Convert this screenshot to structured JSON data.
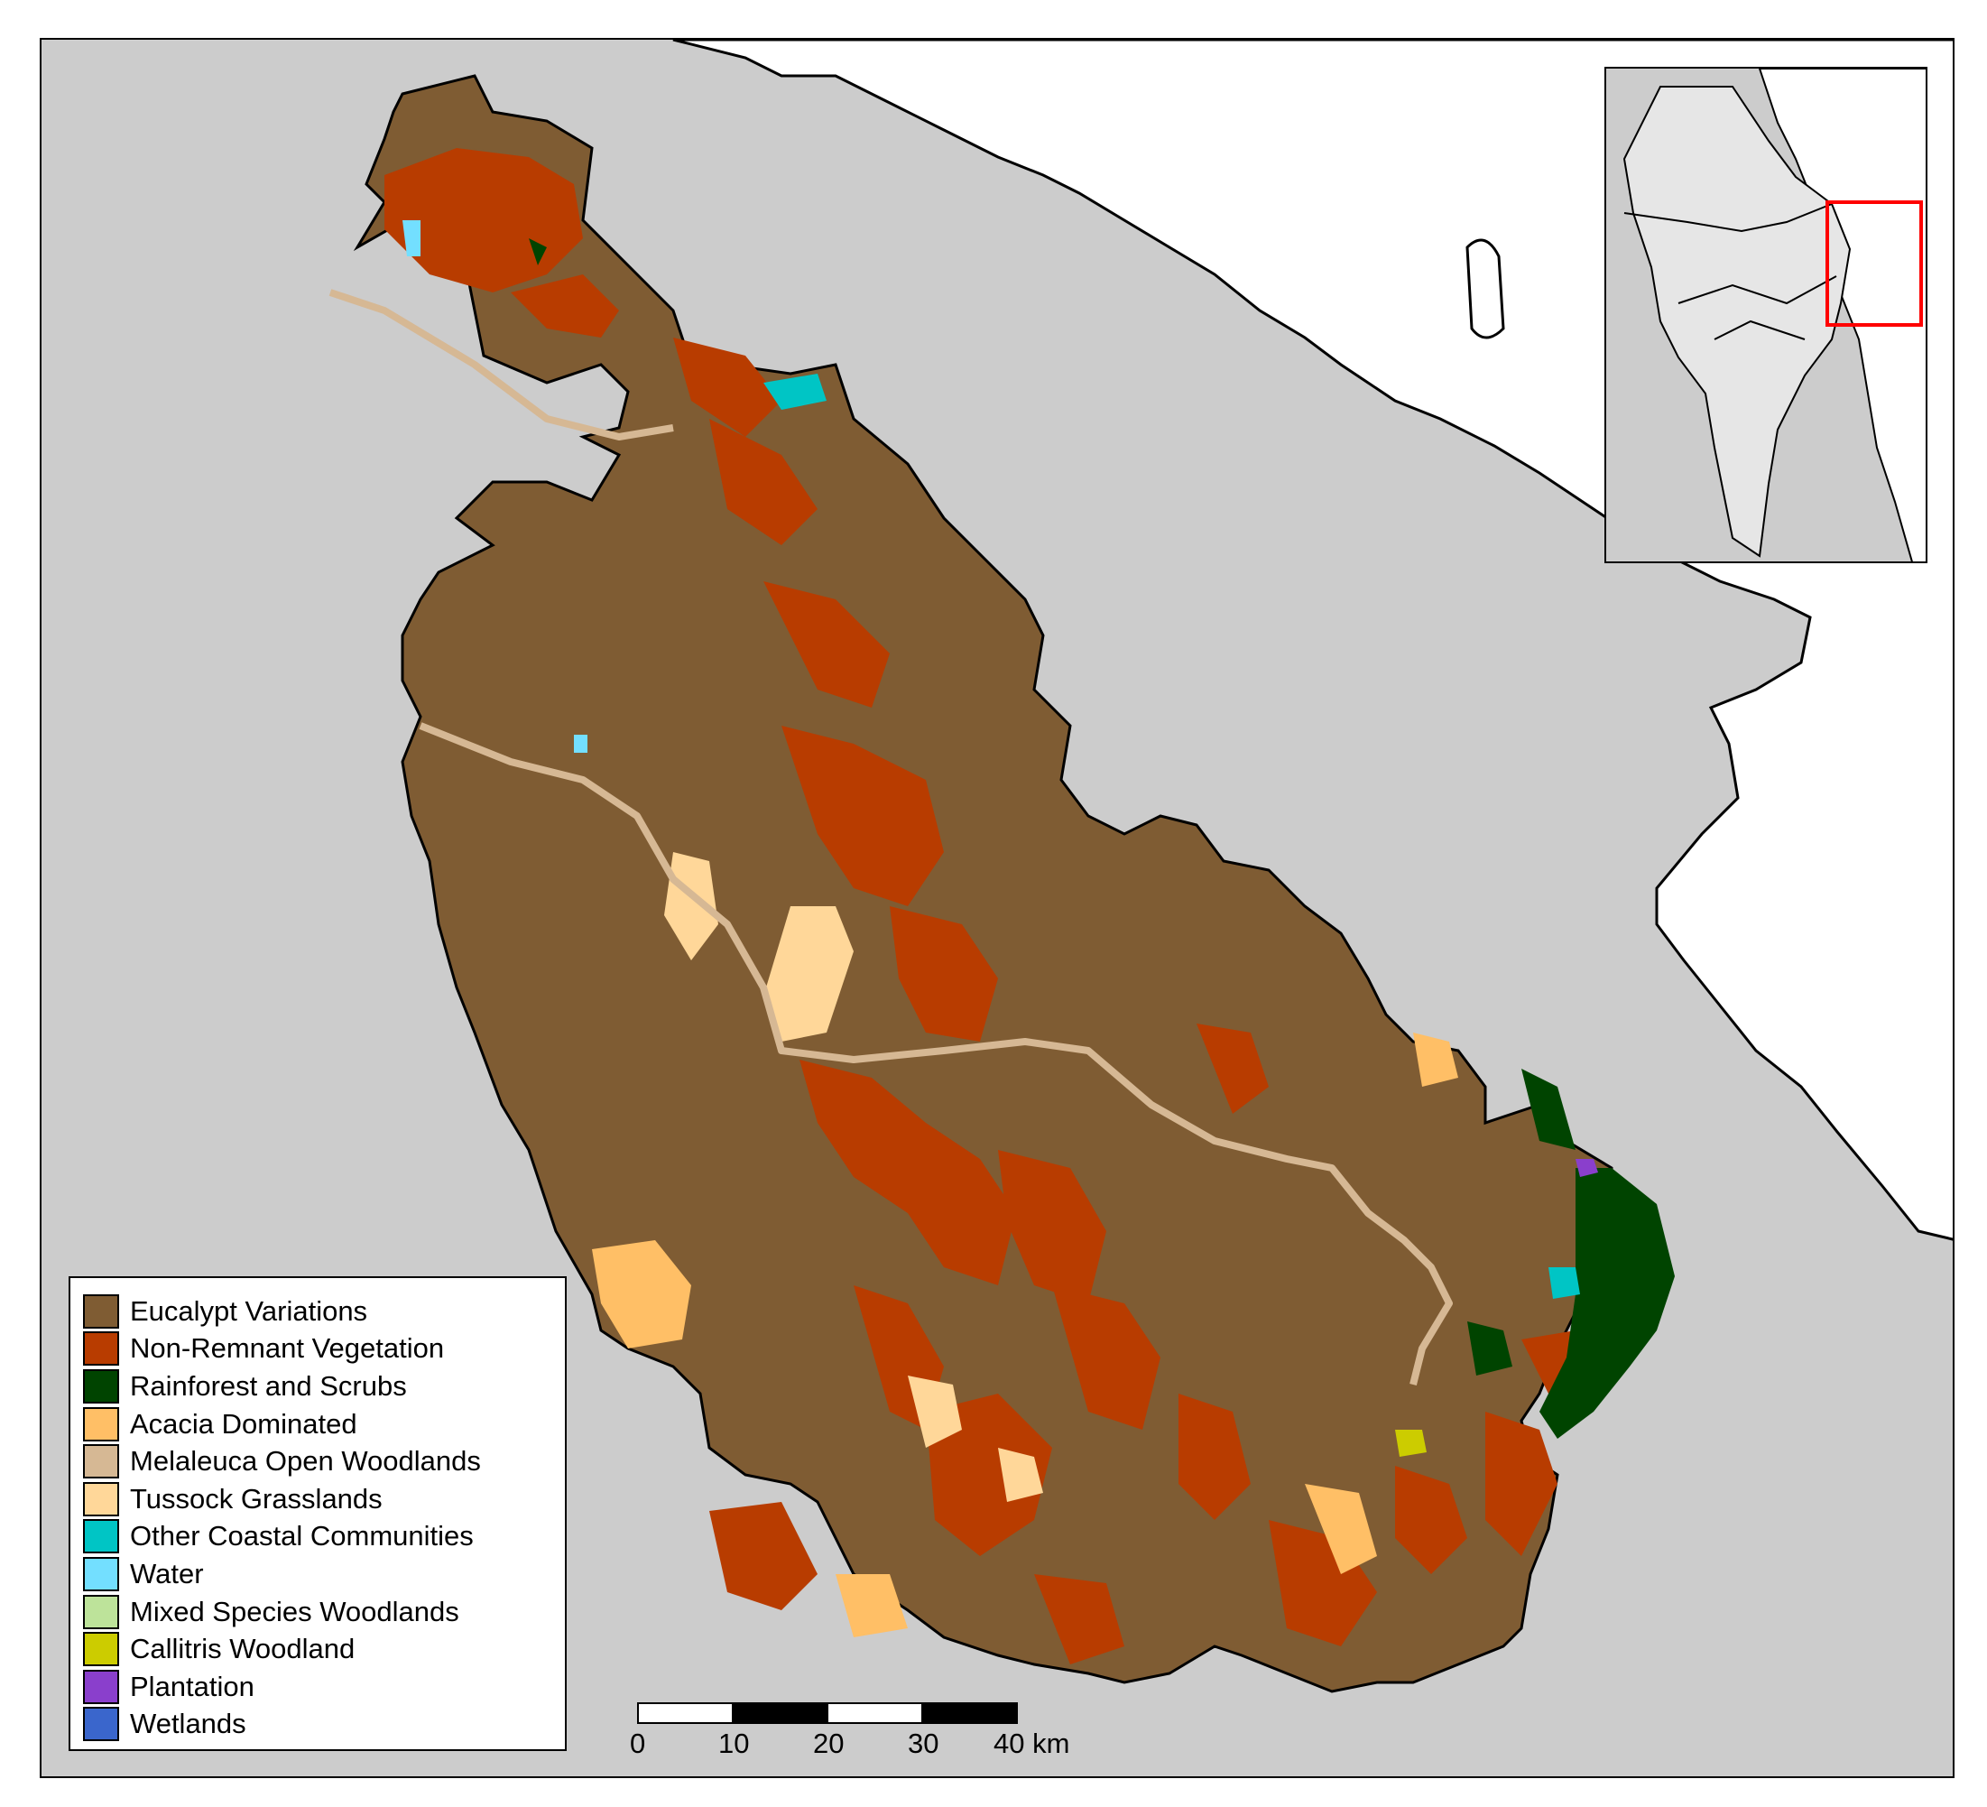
{
  "map": {
    "background_color": "#cccccc",
    "land_outline_color": "#000000",
    "outside_land_color": "#ffffff"
  },
  "legend": {
    "items": [
      {
        "label": "Eucalypt Variations",
        "color": "#7f5c33"
      },
      {
        "label": "Non-Remnant Vegetation",
        "color": "#b83c00"
      },
      {
        "label": "Rainforest and Scrubs",
        "color": "#004400"
      },
      {
        "label": "Acacia Dominated",
        "color": "#ffbf66"
      },
      {
        "label": "Melaleuca Open Woodlands",
        "color": "#d6b894"
      },
      {
        "label": "Tussock Grasslands",
        "color": "#ffd799"
      },
      {
        "label": "Other Coastal Communities",
        "color": "#00c5c5"
      },
      {
        "label": "Water",
        "color": "#73dfff"
      },
      {
        "label": "Mixed Species Woodlands",
        "color": "#bde39a"
      },
      {
        "label": "Callitris Woodland",
        "color": "#cccc00"
      },
      {
        "label": "Plantation",
        "color": "#8a3fcc"
      },
      {
        "label": "Wetlands",
        "color": "#3a66cc"
      }
    ]
  },
  "scale_bar": {
    "ticks": [
      "0",
      "10",
      "20",
      "30",
      "40 km"
    ]
  },
  "inset": {
    "highlight_color": "#ff0000"
  }
}
